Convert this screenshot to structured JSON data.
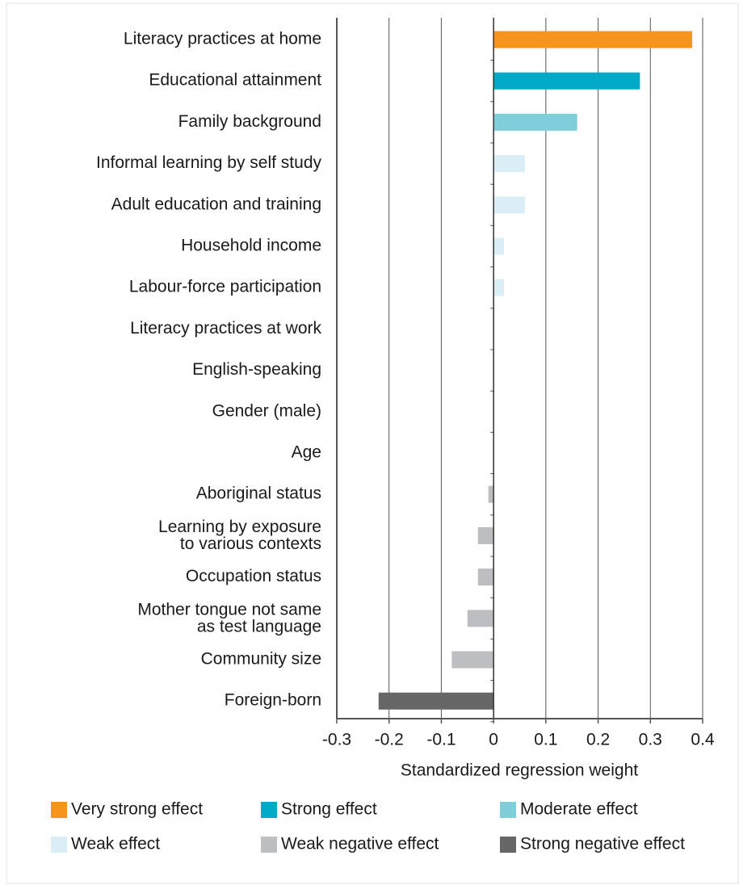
{
  "chart_data": {
    "type": "bar",
    "orientation": "horizontal",
    "xlabel": "Standardized regression weight",
    "categories": [
      "Literacy practices at home",
      "Educational attainment",
      "Family background",
      "Informal learning by self study",
      "Adult education and training",
      "Household income",
      "Labour-force participation",
      "Literacy practices at work",
      "English-speaking",
      "Gender (male)",
      "Age",
      "Aboriginal status",
      "Learning by exposure\nto various contexts",
      "Occupation status",
      "Mother tongue not same\nas test language",
      "Community size",
      "Foreign-born"
    ],
    "values": [
      0.38,
      0.28,
      0.16,
      0.06,
      0.06,
      0.02,
      0.02,
      0,
      0,
      0,
      0,
      -0.01,
      -0.03,
      -0.03,
      -0.05,
      -0.08,
      -0.22
    ],
    "colors": [
      "#f7941d",
      "#00a9c5",
      "#7fcfda",
      "#d9eff5",
      "#d9eff5",
      "#d9eff5",
      "#d9eff5",
      "#d9eff5",
      "#d9eff5",
      "#d9eff5",
      "#d9eff5",
      "#bcbec0",
      "#bcbec0",
      "#bcbec0",
      "#bcbec0",
      "#bcbec0",
      "#666666"
    ],
    "xlim": [
      -0.3,
      0.4
    ],
    "xticks": [
      -0.3,
      -0.2,
      -0.1,
      0,
      0.1,
      0.2,
      0.3,
      0.4
    ],
    "grid": true,
    "legend": [
      {
        "name": "Very strong effect",
        "color": "#f7941d"
      },
      {
        "name": "Strong effect",
        "color": "#00a9c5"
      },
      {
        "name": "Moderate effect",
        "color": "#7fcfda"
      },
      {
        "name": "Weak effect",
        "color": "#d9eff5"
      },
      {
        "name": "Weak negative effect",
        "color": "#bcbec0"
      },
      {
        "name": "Strong negative effect",
        "color": "#666666"
      }
    ]
  }
}
